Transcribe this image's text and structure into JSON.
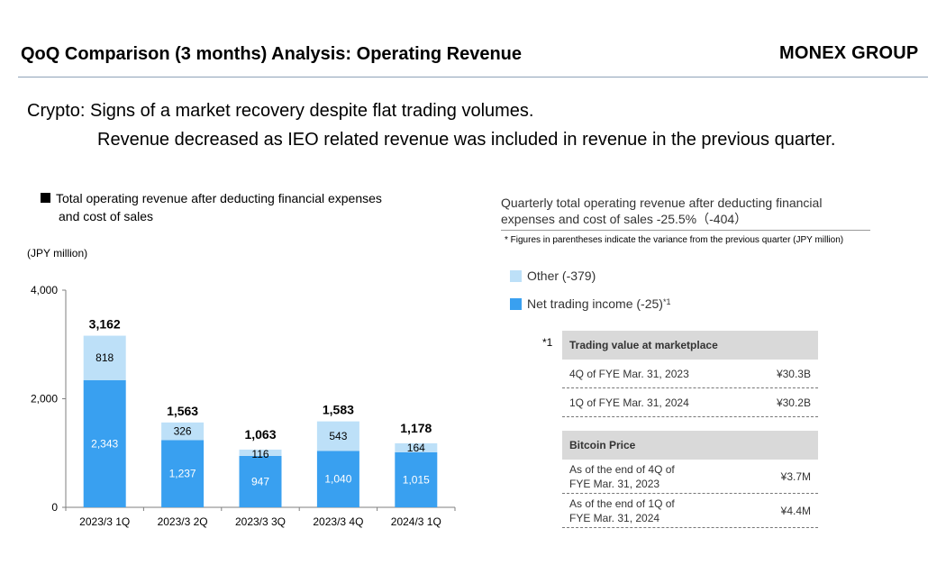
{
  "header": {
    "title": "QoQ Comparison (3 months) Analysis: Operating Revenue",
    "brand": "MONEX GROUP"
  },
  "subtitle": {
    "line1": "Crypto: Signs of a market recovery despite flat trading volumes.",
    "line2": "Revenue decreased as IEO related revenue was included in revenue in the previous quarter."
  },
  "chart_legend": {
    "line1": "Total operating revenue after deducting financial expenses",
    "line2": "and cost of sales"
  },
  "colors": {
    "net_trading": "#39a0f0",
    "other": "#bde0f8",
    "axis": "#7f7f7f"
  },
  "chart_data": {
    "type": "bar",
    "stacked": true,
    "ylabel": "(JPY million)",
    "ylim": [
      0,
      4000
    ],
    "yticks": [
      0,
      2000,
      4000
    ],
    "ytick_labels": [
      "0",
      "2,000",
      "4,000"
    ],
    "categories": [
      "2023/3 1Q",
      "2023/3 2Q",
      "2023/3 3Q",
      "2023/3 4Q",
      "2024/3 1Q"
    ],
    "series": [
      {
        "name": "Net trading income",
        "values": [
          2343,
          1237,
          947,
          1040,
          1015
        ],
        "labels": [
          "2,343",
          "1,237",
          "947",
          "1,040",
          "1,015"
        ]
      },
      {
        "name": "Other",
        "values": [
          818,
          326,
          116,
          543,
          164
        ],
        "labels": [
          "818",
          "326",
          "116",
          "543",
          "164"
        ]
      }
    ],
    "totals": [
      3162,
      1563,
      1063,
      1583,
      1178
    ],
    "total_labels": [
      "3,162",
      "1,563",
      "1,063",
      "1,583",
      "1,178"
    ]
  },
  "right_panel": {
    "title_line1": "Quarterly total operating revenue after deducting financial",
    "title_line2": "expenses and cost of sales -25.5%（-404）",
    "note": "* Figures in parentheses indicate the variance from the previous quarter (JPY million)",
    "legend_other": "Other (-379)",
    "legend_net": "Net trading income (-25)",
    "legend_net_sup": "*1",
    "footnote_marker": "*1",
    "trading_table": {
      "header": "Trading value at marketplace",
      "rows": [
        {
          "label": "4Q of FYE Mar. 31, 2023",
          "value": "¥30.3B"
        },
        {
          "label": "1Q of FYE Mar. 31, 2024",
          "value": "¥30.2B"
        }
      ]
    },
    "bitcoin_table": {
      "header": "Bitcoin Price",
      "rows": [
        {
          "label1": "As of the end of 4Q of",
          "label2": "FYE Mar. 31, 2023",
          "value": "¥3.7M"
        },
        {
          "label1": "As of the end of 1Q of",
          "label2": "FYE Mar. 31, 2024",
          "value": "¥4.4M"
        }
      ]
    }
  }
}
